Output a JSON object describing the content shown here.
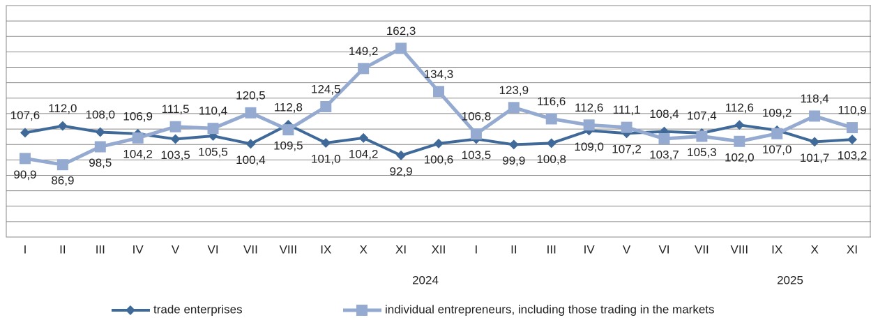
{
  "chart_data": {
    "type": "line",
    "categories": [
      "I",
      "II",
      "III",
      "IV",
      "V",
      "VI",
      "VII",
      "VIII",
      "IX",
      "X",
      "XI",
      "XII",
      "I",
      "II",
      "III",
      "IV",
      "V",
      "VI",
      "VII",
      "VIII",
      "IX",
      "X",
      "XI"
    ],
    "year_labels": [
      "2024",
      "2025"
    ],
    "series": [
      {
        "name": "trade enterprises",
        "color": "#3f6998",
        "marker": "diamond",
        "values": [
          107.6,
          112.0,
          108.0,
          106.9,
          103.5,
          105.5,
          100.4,
          112.8,
          101.0,
          104.2,
          92.9,
          100.6,
          103.5,
          99.9,
          100.8,
          109.0,
          107.2,
          108.4,
          107.4,
          112.6,
          109.2,
          101.7,
          103.2
        ],
        "value_labels": [
          "107,6",
          "112,0",
          "108,0",
          "106,9",
          "103,5",
          "105,5",
          "100,4",
          "112,8",
          "101,0",
          "104,2",
          "92,9",
          "100,6",
          "103,5",
          "99,9",
          "100,8",
          "109,0",
          "107,2",
          "108,4",
          "107,4",
          "112,6",
          "109,2",
          "101,7",
          "103,2"
        ]
      },
      {
        "name": "individual entrepreneurs, including those trading in the markets",
        "color": "#95aad0",
        "marker": "square",
        "values": [
          90.9,
          86.9,
          98.5,
          104.2,
          111.5,
          110.4,
          120.5,
          109.5,
          124.5,
          149.2,
          162.3,
          134.3,
          106.8,
          123.9,
          116.6,
          112.6,
          111.1,
          103.7,
          105.3,
          102.0,
          107.0,
          118.4,
          110.9
        ],
        "value_labels": [
          "90,9",
          "86,9",
          "98,5",
          "104,2",
          "111,5",
          "110,4",
          "120,5",
          "109,5",
          "124,5",
          "149,2",
          "162,3",
          "134,3",
          "106,8",
          "123,9",
          "116,6",
          "112,6",
          "111,1",
          "103,7",
          "105,3",
          "102,0",
          "107,0",
          "118,4",
          "110,9"
        ]
      }
    ],
    "ylim": [
      40,
      190
    ],
    "yticks": [
      40,
      50,
      60,
      70,
      80,
      90,
      100,
      110,
      120,
      130,
      140,
      150,
      160,
      170,
      180,
      190
    ],
    "grid": true
  }
}
